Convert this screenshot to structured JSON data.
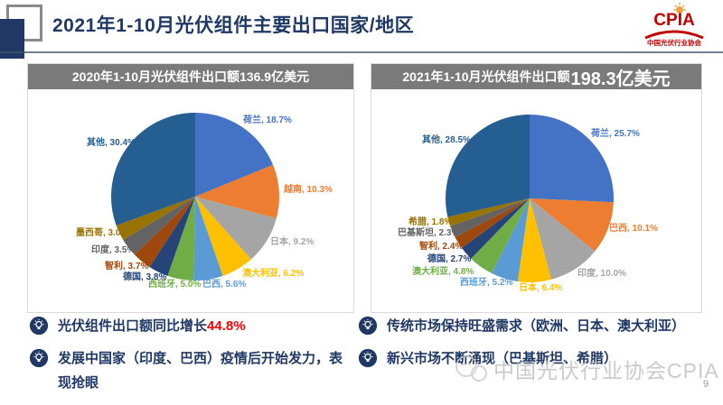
{
  "header": {
    "title": "2021年1-10月光伏组件主要出口国家/地区"
  },
  "logo": {
    "name": "CPIA",
    "subtitle": "中国光伏行业协会"
  },
  "chart_data": [
    {
      "type": "pie",
      "title": "2020年1-10月光伏组件出口额136.9亿美元",
      "title_prefix": "2020年1-10月光伏组件出口额",
      "title_value": "136.9亿美元",
      "legend_position": "outside-labels",
      "slices": [
        {
          "label": "荷兰",
          "value": 18.7,
          "text": "荷兰, 18.7%",
          "color": "#4472C4"
        },
        {
          "label": "越南",
          "value": 10.3,
          "text": "越南, 10.3%",
          "color": "#ED7D31"
        },
        {
          "label": "日本",
          "value": 9.2,
          "text": "日本, 9.2%",
          "color": "#A5A5A5"
        },
        {
          "label": "澳大利亚",
          "value": 6.2,
          "text": "澳大利亚, 6.2%",
          "color": "#FFC000"
        },
        {
          "label": "巴西",
          "value": 5.6,
          "text": "巴西, 5.6%",
          "color": "#5B9BD5"
        },
        {
          "label": "西班牙",
          "value": 5.0,
          "text": "西班牙, 5.0%",
          "color": "#70AD47"
        },
        {
          "label": "德国",
          "value": 3.8,
          "text": "德国, 3.8%",
          "color": "#264478"
        },
        {
          "label": "智利",
          "value": 3.7,
          "text": "智利, 3.7%",
          "color": "#9E480E"
        },
        {
          "label": "印度",
          "value": 3.5,
          "text": "印度, 3.5%",
          "color": "#636363"
        },
        {
          "label": "墨西哥",
          "value": 3.0,
          "text": "墨西哥, 3.0%",
          "color": "#997300"
        },
        {
          "label": "其他",
          "value": 30.4,
          "text": "其他, 30.4%",
          "color": "#255E91"
        }
      ]
    },
    {
      "type": "pie",
      "title": "2021年1-10月光伏组件出口额198.3亿美元",
      "title_prefix": "2021年1-10月光伏组件出口额",
      "title_value": "198.3亿美元",
      "legend_position": "outside-labels",
      "slices": [
        {
          "label": "荷兰",
          "value": 25.7,
          "text": "荷兰, 25.7%",
          "color": "#4472C4"
        },
        {
          "label": "巴西",
          "value": 10.1,
          "text": "巴西, 10.1%",
          "color": "#ED7D31"
        },
        {
          "label": "印度",
          "value": 10.0,
          "text": "印度, 10.0%",
          "color": "#A5A5A5"
        },
        {
          "label": "日本",
          "value": 6.4,
          "text": "日本, 6.4%",
          "color": "#FFC000"
        },
        {
          "label": "西班牙",
          "value": 5.2,
          "text": "西班牙, 5.2%",
          "color": "#5B9BD5"
        },
        {
          "label": "澳大利亚",
          "value": 4.8,
          "text": "澳大利亚, 4.8%",
          "color": "#70AD47"
        },
        {
          "label": "德国",
          "value": 2.7,
          "text": "德国, 2.7%",
          "color": "#264478"
        },
        {
          "label": "智利",
          "value": 2.4,
          "text": "智利, 2.4%",
          "color": "#9E480E"
        },
        {
          "label": "巴基斯坦",
          "value": 2.3,
          "text": "巴基斯坦, 2.3%",
          "color": "#636363"
        },
        {
          "label": "希腊",
          "value": 1.8,
          "text": "希腊, 1.8%",
          "color": "#997300"
        },
        {
          "label": "其他",
          "value": 28.5,
          "text": "其他, 28.5%",
          "color": "#255E91"
        }
      ]
    }
  ],
  "notes_left": [
    {
      "segments": [
        {
          "text": "光伏组件出口额同比增长",
          "color": "#203864"
        },
        {
          "text": "44.8%",
          "color": "#FF0000"
        }
      ]
    },
    {
      "segments": [
        {
          "text": "发展中国家（印度、巴西）疫情后开始发力，表现抢眼",
          "color": "#203864"
        }
      ]
    }
  ],
  "notes_right": [
    {
      "segments": [
        {
          "text": "传统市场保持旺盛需求（欧洲、日本、澳大利亚）",
          "color": "#203864"
        }
      ]
    },
    {
      "segments": [
        {
          "text": "新兴市场不断涌现（巴基斯坦、希腊）",
          "color": "#203864"
        }
      ]
    }
  ],
  "footer": {
    "watermark": "中国光伏行业协会CPIA",
    "page_number": "9"
  }
}
